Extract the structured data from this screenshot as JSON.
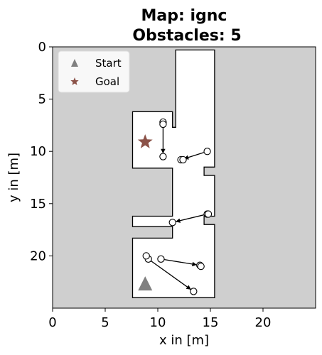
{
  "chart_data": {
    "type": "map",
    "title_line1": "Map: ignc",
    "title_line2": "Obstacles: 5",
    "xlabel": "x in [m]",
    "ylabel": "y in [m]",
    "xlim": [
      0,
      25
    ],
    "ylim": [
      25,
      0
    ],
    "x_ticks": [
      "0",
      "5",
      "10",
      "15",
      "20"
    ],
    "x_tick_values": [
      0,
      5,
      10,
      15,
      20
    ],
    "y_ticks": [
      "0",
      "5",
      "10",
      "15",
      "20"
    ],
    "y_tick_values": [
      0,
      5,
      10,
      15,
      20
    ],
    "colors": {
      "background_cell": "#cfcfcf",
      "free_space": "#ffffff",
      "start": "#808080",
      "goal": "#8b5248"
    },
    "legend": {
      "placement": "top-left",
      "entries": [
        {
          "label": "Start",
          "marker": "triangle",
          "color": "#808080"
        },
        {
          "label": "Goal",
          "marker": "star",
          "color": "#8b5248"
        }
      ]
    },
    "free_space_polygon": [
      [
        11.7,
        0.3
      ],
      [
        15.4,
        0.3
      ],
      [
        15.4,
        11.5
      ],
      [
        14.4,
        11.5
      ],
      [
        14.4,
        12.3
      ],
      [
        15.4,
        12.3
      ],
      [
        15.4,
        16.2
      ],
      [
        14.4,
        16.2
      ],
      [
        14.4,
        17.0
      ],
      [
        15.4,
        17.0
      ],
      [
        15.4,
        24.0
      ],
      [
        7.6,
        24.0
      ],
      [
        7.6,
        18.3
      ],
      [
        11.4,
        18.3
      ],
      [
        11.4,
        17.2
      ],
      [
        7.6,
        17.2
      ],
      [
        7.6,
        16.2
      ],
      [
        11.4,
        16.2
      ],
      [
        11.4,
        11.6
      ],
      [
        7.6,
        11.6
      ],
      [
        7.6,
        6.2
      ],
      [
        11.4,
        6.2
      ],
      [
        11.4,
        7.7
      ],
      [
        11.7,
        7.7
      ]
    ],
    "start": {
      "x": 8.8,
      "y": 22.7
    },
    "goal": {
      "x": 8.8,
      "y": 9.1
    },
    "obstacles": [
      {
        "from": [
          10.5,
          7.2
        ],
        "to": [
          10.5,
          10.5
        ]
      },
      {
        "from": [
          14.7,
          10.0
        ],
        "to": [
          12.2,
          10.8
        ]
      },
      {
        "from": [
          14.7,
          16.0
        ],
        "to": [
          11.4,
          16.8
        ]
      },
      {
        "from": [
          10.3,
          20.3
        ],
        "to": [
          14.0,
          20.9
        ]
      },
      {
        "from": [
          9.1,
          20.3
        ],
        "to": [
          13.4,
          23.4
        ]
      }
    ],
    "extra_circles": [
      [
        10.5,
        7.4
      ],
      [
        12.4,
        10.8
      ],
      [
        14.8,
        16.0
      ],
      [
        8.9,
        20.0
      ],
      [
        14.1,
        21.0
      ]
    ]
  }
}
